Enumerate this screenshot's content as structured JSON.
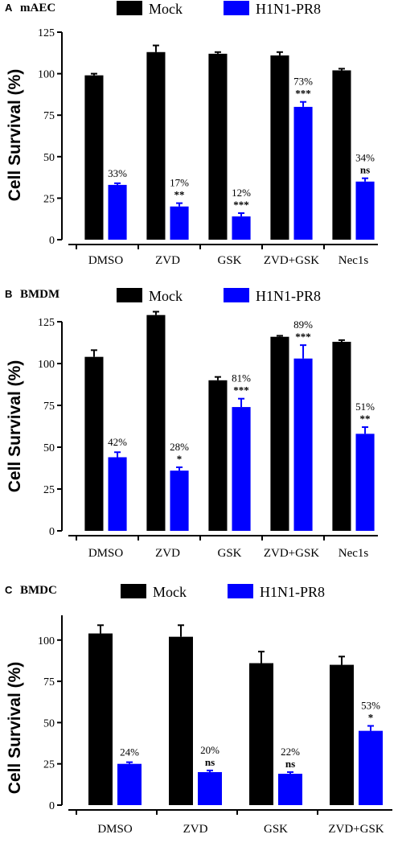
{
  "colors": {
    "mock": "#000000",
    "virus": "#0000ff"
  },
  "chart_data": [
    {
      "type": "bar",
      "panel_letter": "A",
      "panel_name": "mAEC",
      "ylabel": "Cell Survival (%)",
      "ylim": [
        0,
        125
      ],
      "yticks": [
        0,
        25,
        50,
        75,
        100,
        125
      ],
      "legend": [
        "Mock",
        "H1N1-PR8"
      ],
      "legend_placement": "top",
      "categories": [
        "DMSO",
        "ZVD",
        "GSK",
        "ZVD+GSK",
        "Nec1s"
      ],
      "series": [
        {
          "name": "Mock",
          "values": [
            99,
            113,
            112,
            111,
            102
          ],
          "errors": [
            1,
            4,
            1,
            2,
            1
          ]
        },
        {
          "name": "H1N1-PR8",
          "values": [
            33,
            20,
            14,
            80,
            35
          ],
          "errors": [
            1,
            2,
            2,
            3,
            2
          ]
        }
      ],
      "annotations": [
        {
          "percent": "33%",
          "sig": ""
        },
        {
          "percent": "17%",
          "sig": "**"
        },
        {
          "percent": "12%",
          "sig": "***"
        },
        {
          "percent": "73%",
          "sig": "***"
        },
        {
          "percent": "34%",
          "sig": "ns"
        }
      ]
    },
    {
      "type": "bar",
      "panel_letter": "B",
      "panel_name": "BMDM",
      "ylabel": "Cell Survival (%)",
      "ylim": [
        0,
        125
      ],
      "yticks": [
        0,
        25,
        50,
        75,
        100,
        125
      ],
      "legend": [
        "Mock",
        "H1N1-PR8"
      ],
      "legend_placement": "top",
      "categories": [
        "DMSO",
        "ZVD",
        "GSK",
        "ZVD+GSK",
        "Nec1s"
      ],
      "series": [
        {
          "name": "Mock",
          "values": [
            104,
            129,
            90,
            116,
            113
          ],
          "errors": [
            4,
            2,
            2,
            0.6,
            1
          ]
        },
        {
          "name": "H1N1-PR8",
          "values": [
            44,
            36,
            74,
            103,
            58
          ],
          "errors": [
            3,
            2,
            5,
            8,
            4
          ]
        }
      ],
      "annotations": [
        {
          "percent": "42%",
          "sig": ""
        },
        {
          "percent": "28%",
          "sig": "*"
        },
        {
          "percent": "81%",
          "sig": "***"
        },
        {
          "percent": "89%",
          "sig": "***"
        },
        {
          "percent": "51%",
          "sig": "**"
        }
      ]
    },
    {
      "type": "bar",
      "panel_letter": "C",
      "panel_name": "BMDC",
      "ylabel": "Cell Survival (%)",
      "ylim": [
        0,
        115
      ],
      "yticks": [
        0,
        25,
        50,
        75,
        100
      ],
      "legend": [
        "Mock",
        "H1N1-PR8"
      ],
      "legend_placement": "top",
      "categories": [
        "DMSO",
        "ZVD",
        "GSK",
        "ZVD+GSK"
      ],
      "series": [
        {
          "name": "Mock",
          "values": [
            104,
            102,
            86,
            85
          ],
          "errors": [
            5,
            7,
            7,
            5
          ]
        },
        {
          "name": "H1N1-PR8",
          "values": [
            25,
            20,
            19,
            45
          ],
          "errors": [
            1,
            1,
            1,
            3
          ]
        }
      ],
      "annotations": [
        {
          "percent": "24%",
          "sig": ""
        },
        {
          "percent": "20%",
          "sig": "ns"
        },
        {
          "percent": "22%",
          "sig": "ns"
        },
        {
          "percent": "53%",
          "sig": "*"
        }
      ]
    }
  ]
}
